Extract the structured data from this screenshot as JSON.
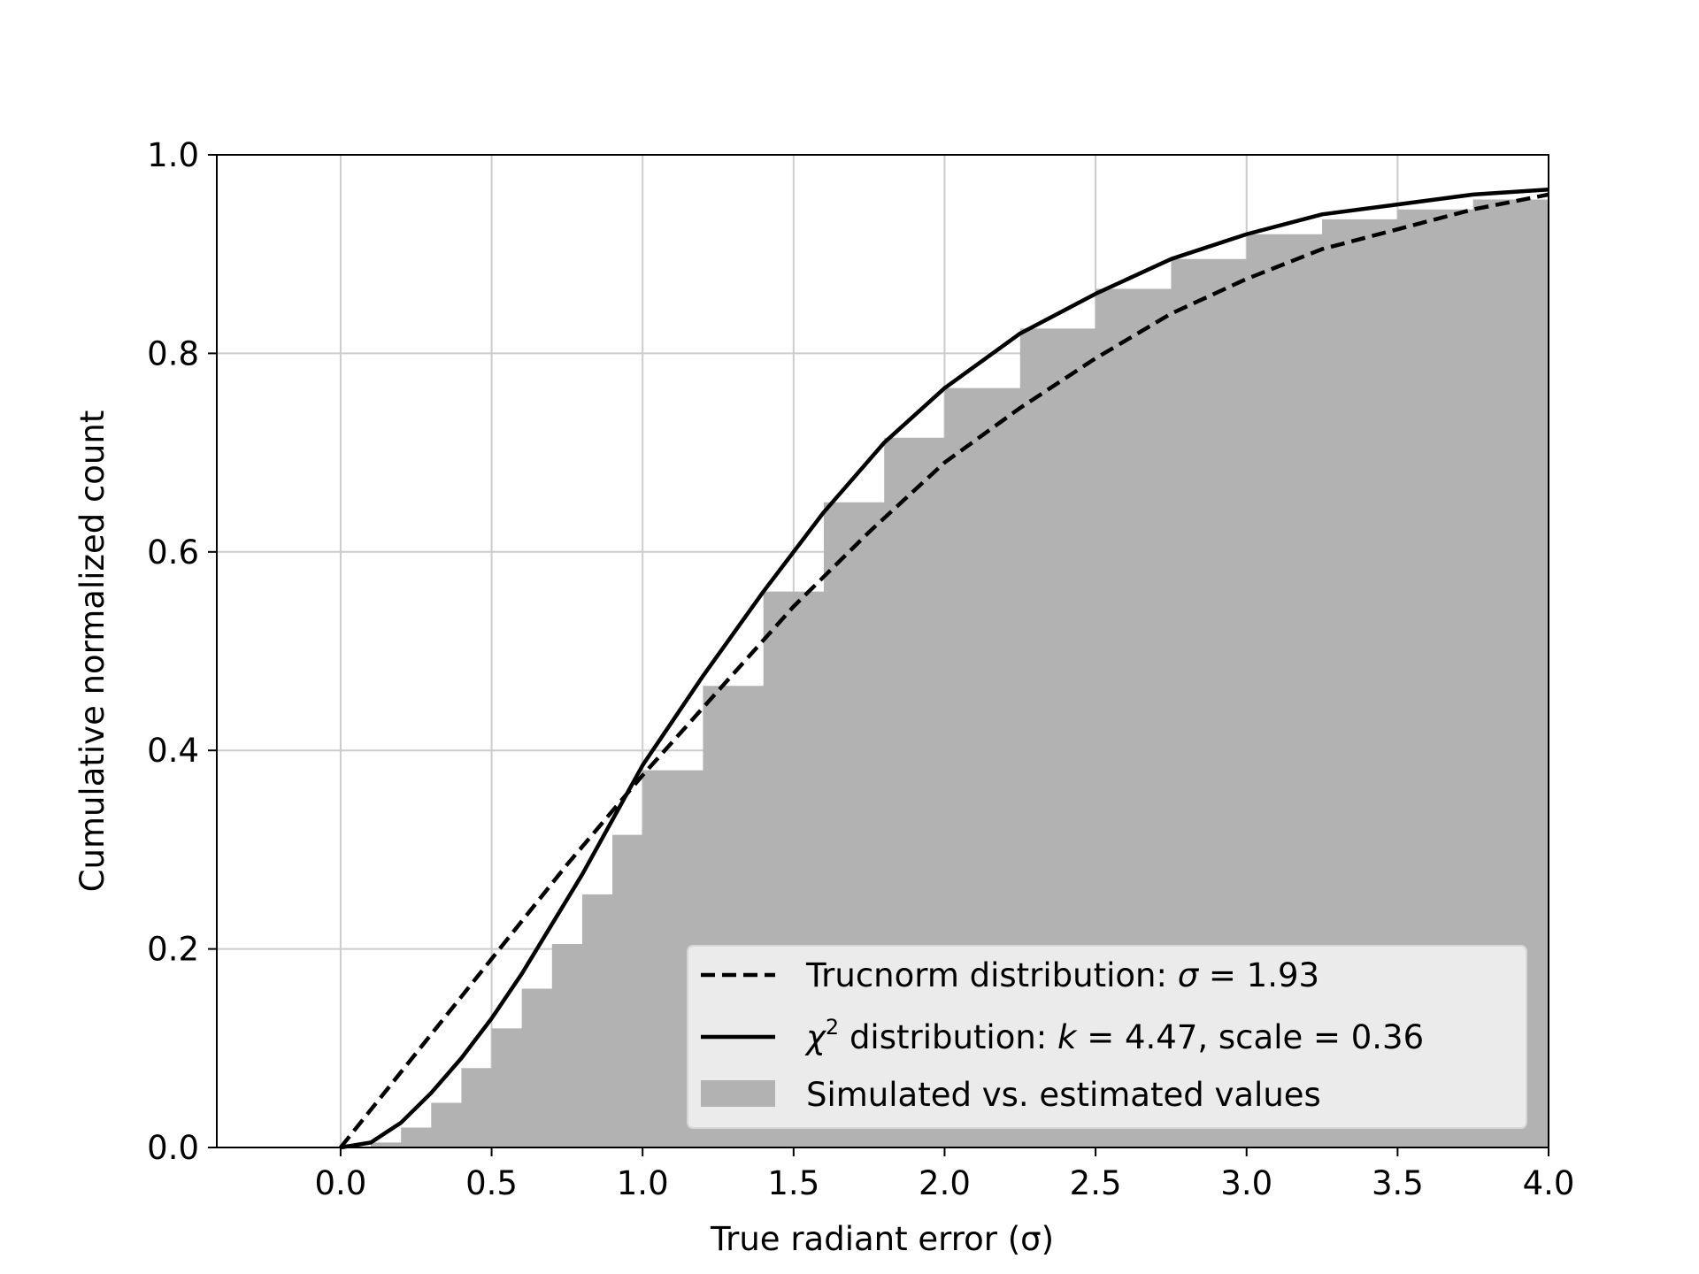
{
  "chart_data": {
    "type": "line",
    "title": "",
    "xlabel": "True radiant error (σ)",
    "ylabel": "Cumulative normalized count",
    "xlim": [
      -0.41,
      4.0
    ],
    "ylim": [
      0.0,
      1.0
    ],
    "xticks": [
      0.0,
      0.5,
      1.0,
      1.5,
      2.0,
      2.5,
      3.0,
      3.5,
      4.0
    ],
    "yticks": [
      0.0,
      0.2,
      0.4,
      0.6,
      0.8,
      1.0
    ],
    "xtick_labels": [
      "0.0",
      "0.5",
      "1.0",
      "1.5",
      "2.0",
      "2.5",
      "3.0",
      "3.5",
      "4.0"
    ],
    "ytick_labels": [
      "0.0",
      "0.2",
      "0.4",
      "0.6",
      "0.8",
      "1.0"
    ],
    "grid": true,
    "legend_position": "lower-right",
    "colors": {
      "histogram": "#b2b2b2",
      "lines": "#000000",
      "grid": "#cccccc",
      "legend_bg": "#f0f0f0"
    },
    "series": [
      {
        "name": "Trucnorm distribution: σ = 1.93",
        "legend": {
          "prefix": "Trucnorm distribution: ",
          "symbol": "σ",
          "suffix": " = 1.93"
        },
        "style": "dashed",
        "kind": "line",
        "x": [
          0.0,
          0.25,
          0.5,
          0.75,
          1.0,
          1.25,
          1.5,
          1.75,
          2.0,
          2.25,
          2.5,
          2.75,
          3.0,
          3.25,
          3.5,
          3.75,
          4.0
        ],
        "y": [
          0.0,
          0.095,
          0.19,
          0.285,
          0.375,
          0.46,
          0.545,
          0.62,
          0.69,
          0.745,
          0.795,
          0.84,
          0.875,
          0.905,
          0.925,
          0.945,
          0.96
        ]
      },
      {
        "name": "χ2 distribution: k = 4.47, scale = 0.36",
        "legend": {
          "prefix": "",
          "symbol": "χ",
          "sup": "2",
          "middle": " distribution: ",
          "param": "k",
          "suffix": " = 4.47, scale = 0.36"
        },
        "style": "solid",
        "kind": "line",
        "x": [
          0.0,
          0.1,
          0.2,
          0.3,
          0.4,
          0.5,
          0.6,
          0.7,
          0.8,
          0.9,
          1.0,
          1.2,
          1.4,
          1.6,
          1.8,
          2.0,
          2.25,
          2.5,
          2.75,
          3.0,
          3.25,
          3.5,
          3.75,
          4.0
        ],
        "y": [
          0.0,
          0.005,
          0.025,
          0.055,
          0.09,
          0.13,
          0.175,
          0.225,
          0.275,
          0.33,
          0.385,
          0.475,
          0.56,
          0.64,
          0.71,
          0.765,
          0.82,
          0.86,
          0.895,
          0.92,
          0.94,
          0.95,
          0.96,
          0.965
        ]
      },
      {
        "name": "Simulated vs. estimated values",
        "legend": {
          "prefix": "Simulated vs. estimated values"
        },
        "style": "fill",
        "kind": "histogram",
        "x": [
          0.0,
          0.1,
          0.2,
          0.3,
          0.4,
          0.5,
          0.6,
          0.7,
          0.8,
          0.9,
          1.0,
          1.2,
          1.4,
          1.6,
          1.8,
          2.0,
          2.25,
          2.5,
          2.75,
          3.0,
          3.25,
          3.5,
          3.75,
          4.0
        ],
        "y": [
          0.0,
          0.005,
          0.02,
          0.045,
          0.08,
          0.12,
          0.16,
          0.205,
          0.255,
          0.315,
          0.38,
          0.465,
          0.56,
          0.65,
          0.715,
          0.765,
          0.825,
          0.865,
          0.895,
          0.92,
          0.935,
          0.945,
          0.955,
          0.965
        ]
      }
    ]
  }
}
